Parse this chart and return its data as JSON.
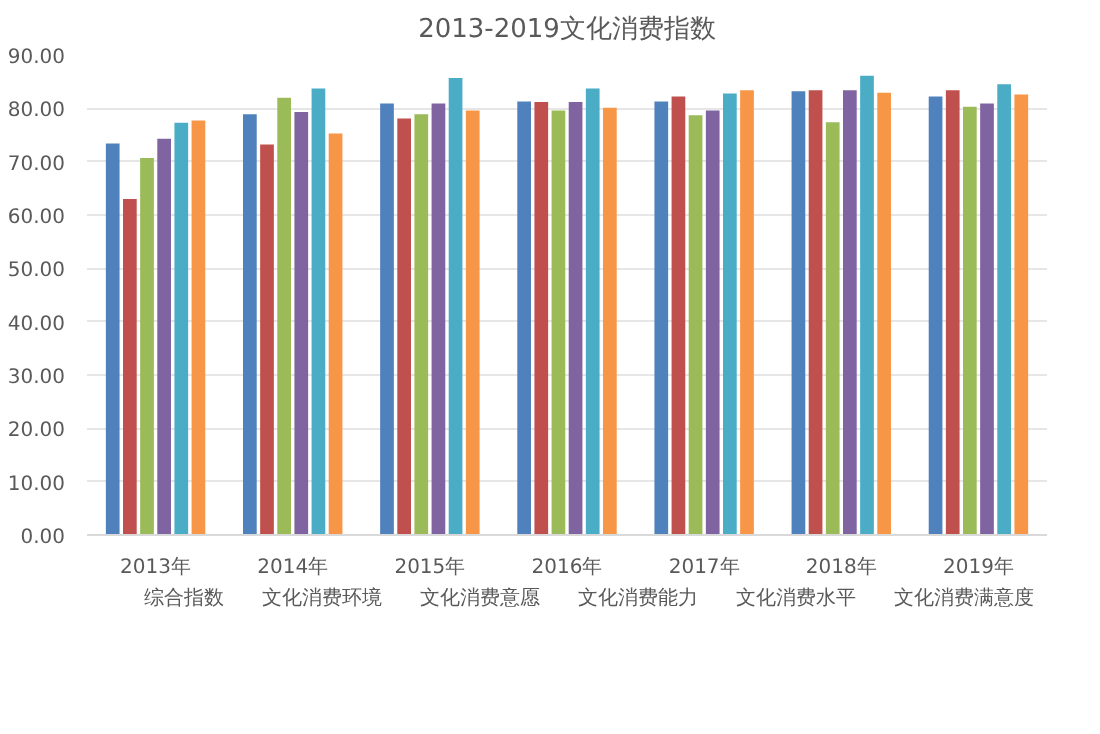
{
  "chart_data": {
    "type": "bar",
    "title": "2013-2019文化消费指数",
    "categories": [
      "2013年",
      "2014年",
      "2015年",
      "2016年",
      "2017年",
      "2018年",
      "2019年"
    ],
    "series": [
      {
        "name": "综合指数",
        "color": "#4f81bd",
        "values": [
          73.4,
          78.9,
          80.9,
          81.3,
          81.3,
          83.2,
          82.2
        ]
      },
      {
        "name": "文化消费环境",
        "color": "#c0504d",
        "values": [
          63.0,
          73.2,
          78.1,
          81.2,
          82.2,
          83.4,
          83.4
        ]
      },
      {
        "name": "文化消费意愿",
        "color": "#9bbb59",
        "values": [
          70.7,
          82.0,
          78.9,
          79.6,
          78.7,
          77.4,
          80.3
        ]
      },
      {
        "name": "文化消费能力",
        "color": "#8064a2",
        "values": [
          74.3,
          79.3,
          80.9,
          81.2,
          79.6,
          83.4,
          80.9
        ]
      },
      {
        "name": "文化消费水平",
        "color": "#4bacc6",
        "values": [
          77.3,
          83.7,
          85.7,
          83.7,
          82.8,
          86.1,
          84.5
        ]
      },
      {
        "name": "文化消费满意度",
        "color": "#f79646",
        "values": [
          77.7,
          75.3,
          79.6,
          80.1,
          83.4,
          82.9,
          82.6
        ]
      }
    ],
    "ylim": [
      0,
      90
    ],
    "yticks": [
      {
        "value": 0,
        "label": "0.00"
      },
      {
        "value": 10,
        "label": "10.00"
      },
      {
        "value": 20,
        "label": "20.00"
      },
      {
        "value": 30,
        "label": "30.00"
      },
      {
        "value": 40,
        "label": "40.00"
      },
      {
        "value": 50,
        "label": "50.00"
      },
      {
        "value": 60,
        "label": "60.00"
      },
      {
        "value": 70,
        "label": "70.00"
      },
      {
        "value": 80,
        "label": "80.00"
      },
      {
        "value": 90,
        "label": "90.00"
      }
    ],
    "grid": "y",
    "legend": "bottom"
  }
}
